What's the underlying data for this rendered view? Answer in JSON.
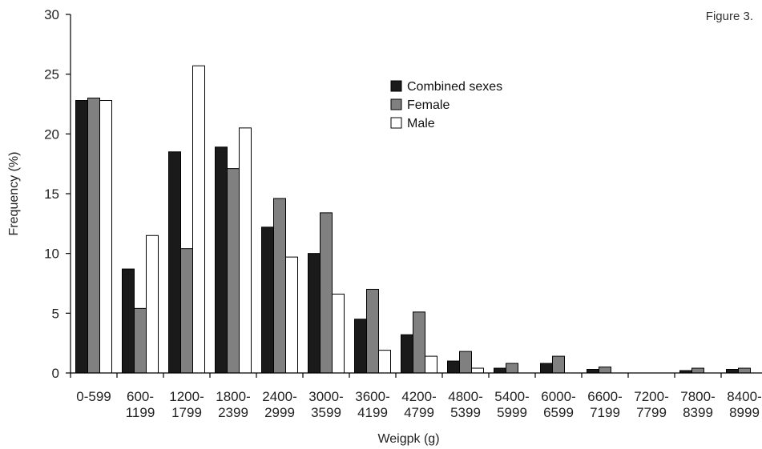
{
  "figure_label": "Figure 3.",
  "chart_data": {
    "type": "bar",
    "title": "",
    "xlabel": "Weigpk (g)",
    "ylabel": "Frequency (%)",
    "ylim": [
      0,
      30
    ],
    "yticks": [
      0,
      5,
      10,
      15,
      20,
      25,
      30
    ],
    "grid": false,
    "legend_position": "top-center",
    "categories": [
      [
        "0-599",
        ""
      ],
      [
        "600-",
        "1199"
      ],
      [
        "1200-",
        "1799"
      ],
      [
        "1800-",
        "2399"
      ],
      [
        "2400-",
        "2999"
      ],
      [
        "3000-",
        "3599"
      ],
      [
        "3600-",
        "4199"
      ],
      [
        "4200-",
        "4799"
      ],
      [
        "4800-",
        "5399"
      ],
      [
        "5400-",
        "5999"
      ],
      [
        "6000-",
        "6599"
      ],
      [
        "6600-",
        "7199"
      ],
      [
        "7200-",
        "7799"
      ],
      [
        "7800-",
        "8399"
      ],
      [
        "8400-",
        "8999"
      ]
    ],
    "series": [
      {
        "name": "Combined sexes",
        "color": "#1a1a1a",
        "values": [
          22.8,
          8.7,
          18.5,
          18.9,
          12.2,
          10.0,
          4.5,
          3.2,
          1.0,
          0.4,
          0.8,
          0.3,
          0.0,
          0.2,
          0.3
        ]
      },
      {
        "name": "Female",
        "color": "#808080",
        "values": [
          23.0,
          5.4,
          10.4,
          17.1,
          14.6,
          13.4,
          7.0,
          5.1,
          1.8,
          0.8,
          1.4,
          0.5,
          0.0,
          0.4,
          0.4
        ]
      },
      {
        "name": "Male",
        "color": "#ffffff",
        "values": [
          22.8,
          11.5,
          25.7,
          20.5,
          9.7,
          6.6,
          1.9,
          1.4,
          0.4,
          0.0,
          0.0,
          0.0,
          0.0,
          0.0,
          0.0
        ]
      }
    ]
  }
}
